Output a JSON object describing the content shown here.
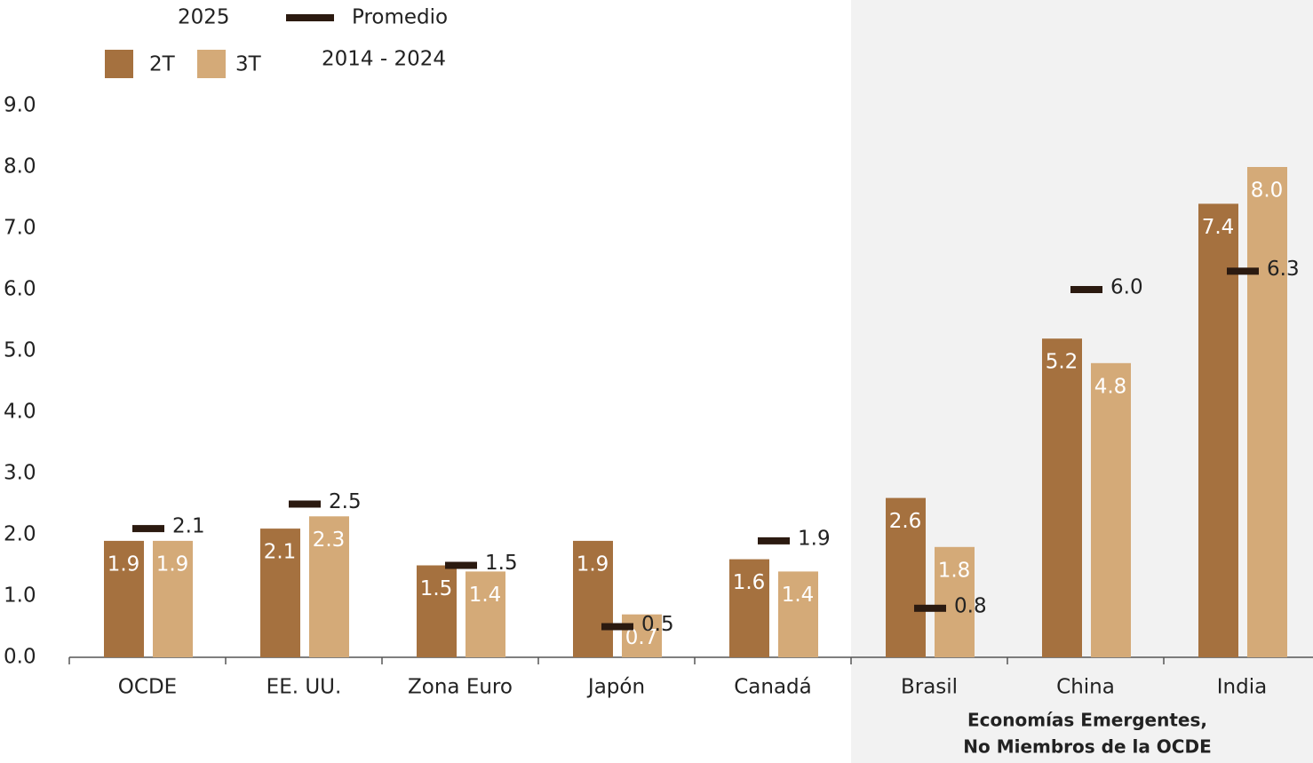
{
  "chart_data": {
    "type": "bar",
    "legend_title": "2025",
    "categories": [
      "OCDE",
      "EE. UU.",
      "Zona Euro",
      "Japón",
      "Canadá",
      "Brasil",
      "China",
      "India"
    ],
    "series": [
      {
        "name": "2T",
        "color": "#a5713f",
        "values": [
          1.9,
          2.1,
          1.5,
          1.9,
          1.6,
          2.6,
          5.2,
          7.4
        ],
        "value_labels": [
          "1.9",
          "2.1",
          "1.5",
          "1.9",
          "1.6",
          "2.6",
          "5.2",
          "7.4"
        ]
      },
      {
        "name": "3T",
        "color": "#d4aa78",
        "values": [
          1.9,
          2.3,
          1.4,
          0.7,
          1.4,
          1.8,
          4.8,
          8.0
        ],
        "value_labels": [
          "1.9",
          "2.3",
          "1.4",
          "0.7",
          "1.4",
          "1.8",
          "4.8",
          "8.0"
        ]
      },
      {
        "name": "Promedio",
        "period": "2014 - 2024",
        "type": "marker",
        "color": "#2b1a10",
        "values": [
          2.1,
          2.5,
          1.5,
          0.5,
          1.9,
          0.8,
          6.0,
          6.3
        ],
        "value_labels": [
          "2.1",
          "2.5",
          "1.5",
          "0.5",
          "1.9",
          "0.8",
          "6.0",
          "6.3"
        ]
      }
    ],
    "ylim": [
      0,
      9
    ],
    "yticks": [
      {
        "value": 0,
        "label": "0.0"
      },
      {
        "value": 1,
        "label": "1.0"
      },
      {
        "value": 2,
        "label": "2.0"
      },
      {
        "value": 3,
        "label": "3.0"
      },
      {
        "value": 4,
        "label": "4.0"
      },
      {
        "value": 5,
        "label": "5.0"
      },
      {
        "value": 6,
        "label": "6.0"
      },
      {
        "value": 7,
        "label": "7.0"
      },
      {
        "value": 8,
        "label": "8.0"
      },
      {
        "value": 9,
        "label": "9.0"
      }
    ],
    "grid": false,
    "annotation": [
      "Economías Emergentes,",
      "No Miembros de la OCDE"
    ]
  }
}
